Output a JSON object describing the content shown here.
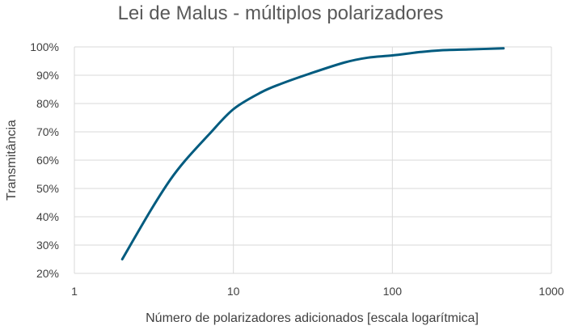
{
  "chart_data": {
    "type": "line",
    "title": "Lei de Malus - múltiplos polarizadores",
    "xlabel": "Número de polarizadores adicionados [escala logarítmica]",
    "ylabel": "Transmitância",
    "x_scale": "log",
    "xlim": [
      1,
      1000
    ],
    "ylim": [
      0.2,
      1.0
    ],
    "x_ticks": [
      1,
      10,
      100,
      1000
    ],
    "x_tick_labels": [
      "1",
      "10",
      "100",
      "1000"
    ],
    "y_ticks": [
      0.2,
      0.3,
      0.4,
      0.5,
      0.6,
      0.7,
      0.8,
      0.9,
      1.0
    ],
    "y_tick_labels": [
      "20%",
      "30%",
      "40%",
      "50%",
      "60%",
      "70%",
      "80%",
      "90%",
      "100%"
    ],
    "grid": true,
    "legend": "none",
    "series_color": "#005b7f",
    "series": [
      {
        "x": [
          2,
          3,
          4,
          5,
          7,
          10,
          15,
          20,
          30,
          50,
          70,
          100,
          150,
          200,
          300,
          500
        ],
        "y": [
          0.25,
          0.42,
          0.53,
          0.6,
          0.69,
          0.78,
          0.84,
          0.87,
          0.905,
          0.945,
          0.962,
          0.97,
          0.982,
          0.988,
          0.991,
          0.995
        ]
      }
    ]
  }
}
